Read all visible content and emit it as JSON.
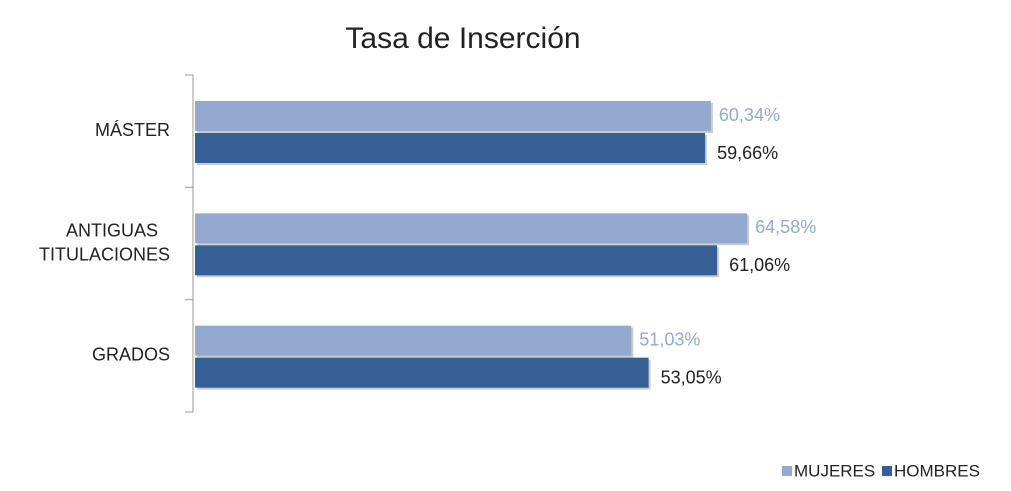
{
  "chart_data": {
    "type": "bar",
    "orientation": "horizontal",
    "title": "Tasa de Inserción",
    "categories": [
      "MÁSTER",
      "ANTIGUAS TITULACIONES",
      "GRADOS"
    ],
    "series": [
      {
        "name": "MUJERES",
        "color": "#94a9d0",
        "values": [
          60.34,
          64.58,
          51.03
        ],
        "value_labels": [
          "60,34%",
          "64,58%",
          "51,03%"
        ]
      },
      {
        "name": "HOMBRES",
        "color": "#355f95",
        "values": [
          59.66,
          61.06,
          53.05
        ],
        "value_labels": [
          "59,66%",
          "61,06%",
          "53,05%"
        ]
      }
    ],
    "legend": "bottom-right"
  }
}
